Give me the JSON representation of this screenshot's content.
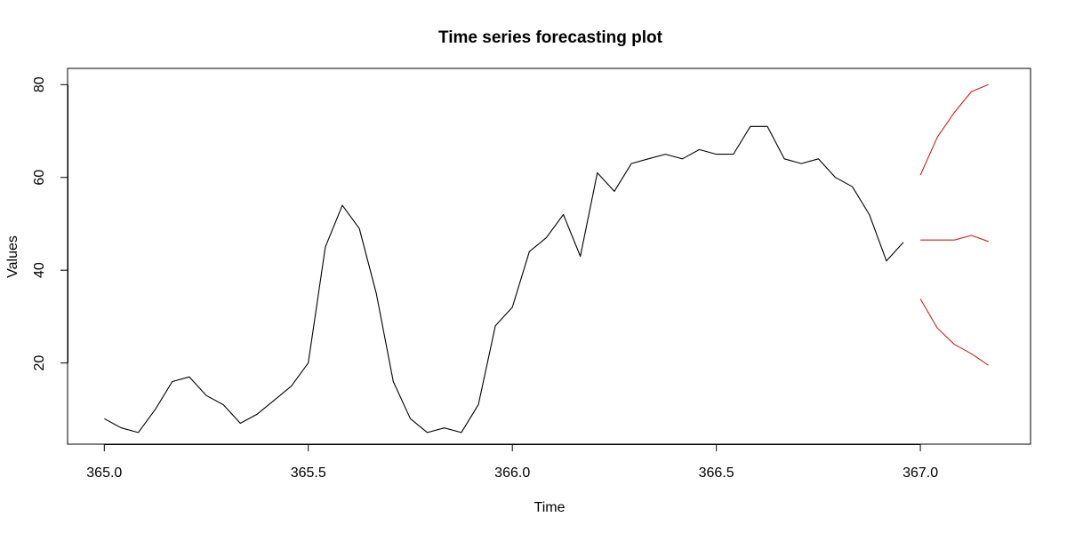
{
  "chart_data": {
    "type": "line",
    "title": "Time series forecasting plot",
    "xlabel": "Time",
    "ylabel": "Values",
    "xlim": [
      364.91,
      367.27
    ],
    "ylim": [
      2.5,
      83.5
    ],
    "x_ticks": [
      365.0,
      365.5,
      366.0,
      366.5,
      367.0
    ],
    "x_tick_labels": [
      "365.0",
      "365.5",
      "366.0",
      "366.5",
      "367.0"
    ],
    "y_ticks": [
      20,
      40,
      60,
      80
    ],
    "y_tick_labels": [
      "20",
      "40",
      "60",
      "80"
    ],
    "grid": false,
    "colors": {
      "observed": "#000000",
      "forecast": "#cc1f1f"
    },
    "series": [
      {
        "role": "observed",
        "x": [
          365.0,
          365.0417,
          365.0833,
          365.125,
          365.1667,
          365.2083,
          365.25,
          365.2917,
          365.3333,
          365.375,
          365.4167,
          365.4583,
          365.5,
          365.5417,
          365.5833,
          365.625,
          365.6667,
          365.7083,
          365.75,
          365.7917,
          365.8333,
          365.875,
          365.9167,
          365.9583,
          366.0,
          366.0417,
          366.0833,
          366.125,
          366.1667,
          366.2083,
          366.25,
          366.2917,
          366.3333,
          366.375,
          366.4167,
          366.4583,
          366.5,
          366.5417,
          366.5833,
          366.625,
          366.6667,
          366.7083,
          366.75,
          366.7917,
          366.8333,
          366.875,
          366.9167,
          366.9583
        ],
        "values": [
          8,
          6,
          5,
          10,
          16,
          17,
          13,
          11,
          7,
          9,
          12,
          15,
          20,
          45,
          54,
          49,
          35,
          16,
          8,
          5,
          6,
          5,
          11,
          28,
          32,
          44,
          47,
          52,
          43,
          61,
          57,
          63,
          64,
          65,
          64,
          66,
          65,
          65,
          71,
          71,
          64,
          63,
          64,
          60,
          58,
          52,
          42,
          46
        ]
      },
      {
        "role": "forecast",
        "x": [
          367.0,
          367.0417,
          367.0833,
          367.125,
          367.1667
        ],
        "values": [
          46.5,
          46.5,
          46.5,
          47.5,
          46.2
        ]
      },
      {
        "role": "forecast",
        "x": [
          367.0,
          367.0417,
          367.0833,
          367.125,
          367.1667
        ],
        "values": [
          60.5,
          68.7,
          74.0,
          78.5,
          80.0
        ]
      },
      {
        "role": "forecast",
        "x": [
          367.0,
          367.0417,
          367.0833,
          367.125,
          367.1667
        ],
        "values": [
          33.8,
          27.5,
          24.0,
          22.0,
          19.5
        ]
      }
    ]
  }
}
